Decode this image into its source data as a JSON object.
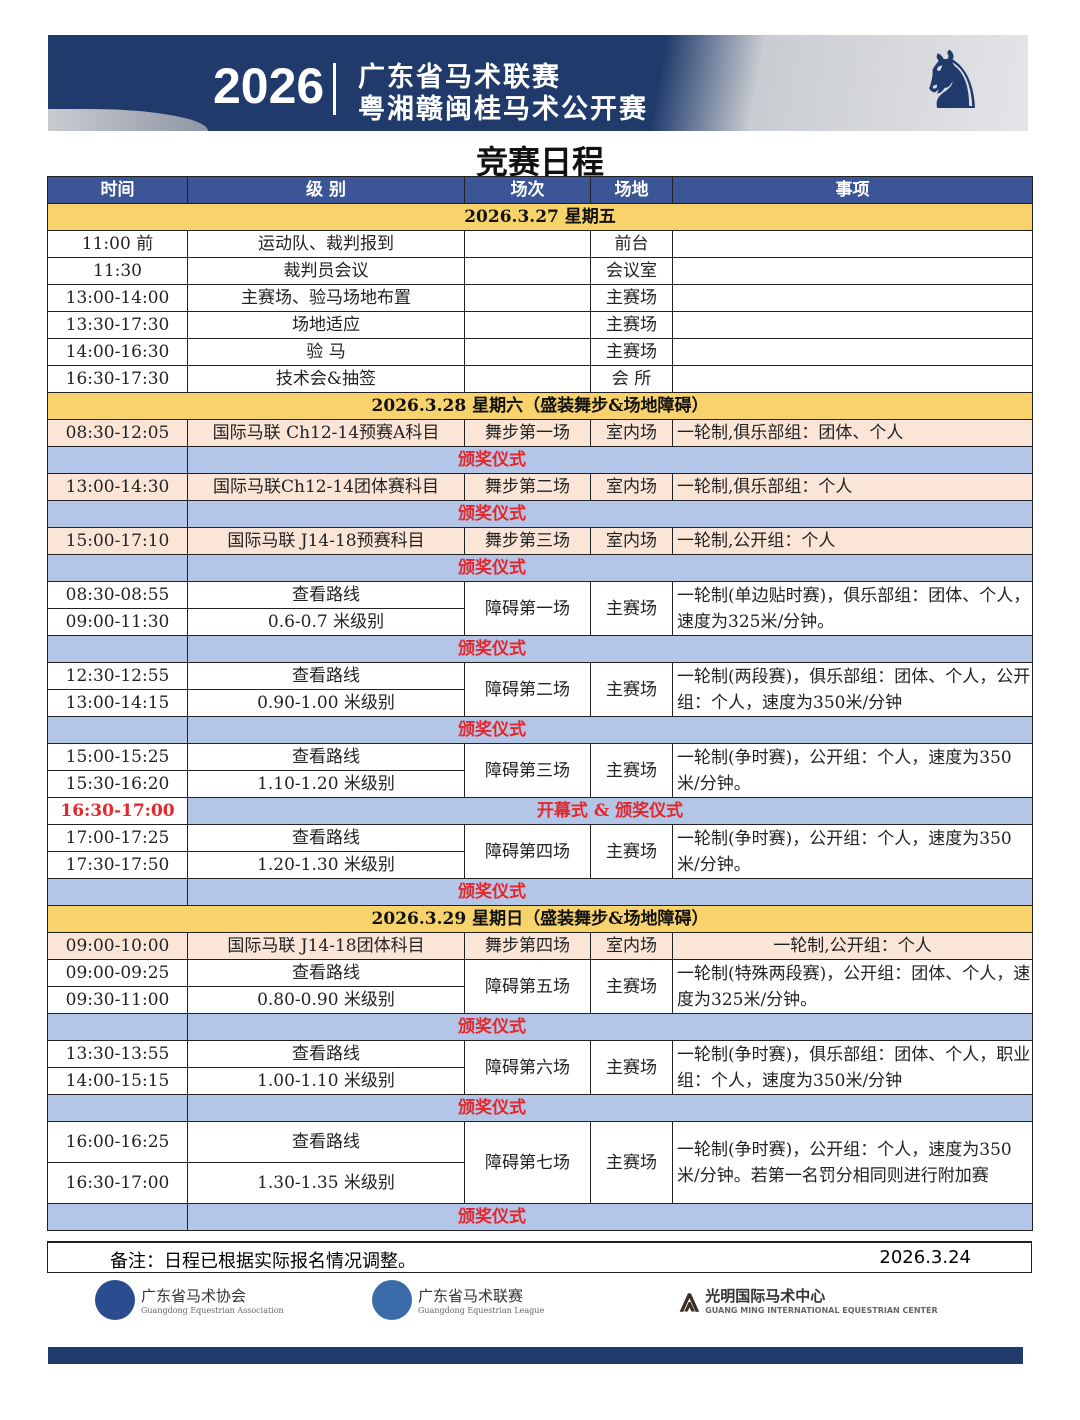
{
  "banner": {
    "year": "2026",
    "line1": "广东省马术联赛",
    "line2": "粤湘赣闽桂马术公开赛"
  },
  "title": "竞赛日程",
  "headers": [
    "时间",
    "级 别",
    "场次",
    "场地",
    "事项"
  ],
  "rows": [
    {
      "type": "day",
      "text": "2026.3.27  星期五"
    },
    {
      "type": "simple",
      "cells": [
        "11:00 前",
        "运动队、裁判报到",
        "",
        "前台",
        ""
      ]
    },
    {
      "type": "simple",
      "cells": [
        "11:30",
        "裁判员会议",
        "",
        "会议室",
        ""
      ]
    },
    {
      "type": "simple",
      "cells": [
        "13:00-14:00",
        "主赛场、验马场地布置",
        "",
        "主赛场",
        ""
      ]
    },
    {
      "type": "simple",
      "cells": [
        "13:30-17:30",
        "场地适应",
        "",
        "主赛场",
        ""
      ]
    },
    {
      "type": "simple",
      "cells": [
        "14:00-16:30",
        "验 马",
        "",
        "主赛场",
        ""
      ]
    },
    {
      "type": "simple",
      "cells": [
        "16:30-17:30",
        "技术会&抽签",
        "",
        "会 所",
        ""
      ]
    },
    {
      "type": "day",
      "text": "2026.3.28  星期六（盛装舞步&场地障碍）"
    },
    {
      "type": "dres",
      "cells": [
        "08:30-12:05",
        "国际马联 Ch12-14预赛A科目",
        "舞步第一场",
        "室内场",
        "一轮制,俱乐部组：团体、个人"
      ]
    },
    {
      "type": "award",
      "text": "颁奖仪式"
    },
    {
      "type": "dres",
      "cells": [
        "13:00-14:30",
        "国际马联Ch12-14团体赛科目",
        "舞步第二场",
        "室内场",
        "一轮制,俱乐部组：个人"
      ]
    },
    {
      "type": "award",
      "text": "颁奖仪式"
    },
    {
      "type": "dres",
      "cells": [
        "15:00-17:10",
        "国际马联 J14-18预赛科目",
        "舞步第三场",
        "室内场",
        "一轮制,公开组：个人"
      ]
    },
    {
      "type": "award",
      "text": "颁奖仪式"
    },
    {
      "type": "pair",
      "times": [
        "08:30-08:55",
        "09:00-11:30"
      ],
      "levels": [
        "查看路线",
        "0.6-0.7 米级别"
      ],
      "match": "障碍第一场",
      "venue": "主赛场",
      "desc": "一轮制(单边贴时赛)，俱乐部组：团体、个人，速度为325米/分钟。"
    },
    {
      "type": "award",
      "text": "颁奖仪式"
    },
    {
      "type": "pair",
      "times": [
        "12:30-12:55",
        "13:00-14:15"
      ],
      "levels": [
        "查看路线",
        "0.90-1.00 米级别"
      ],
      "match": "障碍第二场",
      "venue": "主赛场",
      "desc": "一轮制(两段赛)，俱乐部组：团体、个人，公开组：个人，速度为350米/分钟"
    },
    {
      "type": "award",
      "text": "颁奖仪式"
    },
    {
      "type": "pair",
      "times": [
        "15:00-15:25",
        "15:30-16:20"
      ],
      "levels": [
        "查看路线",
        "1.10-1.20 米级别"
      ],
      "match": "障碍第三场",
      "venue": "主赛场",
      "desc": "一轮制(争时赛)，公开组：个人，速度为350米/分钟。"
    },
    {
      "type": "red",
      "time": "16:30-17:00",
      "text": "开幕式 & 颁奖仪式"
    },
    {
      "type": "pair",
      "times": [
        "17:00-17:25",
        "17:30-17:50"
      ],
      "levels": [
        "查看路线",
        "1.20-1.30 米级别"
      ],
      "match": "障碍第四场",
      "venue": "主赛场",
      "desc": "一轮制(争时赛)，公开组：个人，速度为350米/分钟。"
    },
    {
      "type": "award",
      "text": "颁奖仪式"
    },
    {
      "type": "day",
      "text": "2026.3.29  星期日（盛装舞步&场地障碍）"
    },
    {
      "type": "dres",
      "center": true,
      "cells": [
        "09:00-10:00",
        "国际马联 J14-18团体科目",
        "舞步第四场",
        "室内场",
        "一轮制,公开组：个人"
      ]
    },
    {
      "type": "pair",
      "times": [
        "09:00-09:25",
        "09:30-11:00"
      ],
      "levels": [
        "查看路线",
        "0.80-0.90 米级别"
      ],
      "match": "障碍第五场",
      "venue": "主赛场",
      "desc": "一轮制(特殊两段赛)，公开组：团体、个人，速度为325米/分钟。"
    },
    {
      "type": "award",
      "text": "颁奖仪式"
    },
    {
      "type": "pair",
      "times": [
        "13:30-13:55",
        "14:00-15:15"
      ],
      "levels": [
        "查看路线",
        "1.00-1.10 米级别"
      ],
      "match": "障碍第六场",
      "venue": "主赛场",
      "desc": "一轮制(争时赛)，俱乐部组：团体、个人，职业组：个人，速度为350米/分钟"
    },
    {
      "type": "award",
      "text": "颁奖仪式"
    },
    {
      "type": "pair",
      "tall": true,
      "times": [
        "16:00-16:25",
        "16:30-17:00"
      ],
      "levels": [
        "查看路线",
        "1.30-1.35 米级别"
      ],
      "match": "障碍第七场",
      "venue": "主赛场",
      "desc": "一轮制(争时赛)，公开组：个人，速度为350米/分钟。若第一名罚分相同则进行附加赛"
    },
    {
      "type": "award",
      "text": "颁奖仪式"
    }
  ],
  "note": {
    "text": "备注：日程已根据实际报名情况调整。",
    "date": "2026.3.24"
  },
  "logos": [
    {
      "name": "广东省马术协会",
      "sub": "Guangdong Equestrian Association"
    },
    {
      "name": "广东省马术联赛",
      "sub": "Guangdong Equestrian League"
    },
    {
      "name": "光明国际马术中心",
      "sub": "GUANG MING INTERNATIONAL EQUESTRIAN CENTER"
    }
  ],
  "colors": {
    "header": "#3b5597",
    "day": "#f8d36c",
    "dressage": "#fbe5d6",
    "award": "#b4c6e7",
    "award_text": "#e5262a",
    "banner": "#1f3a6b"
  }
}
